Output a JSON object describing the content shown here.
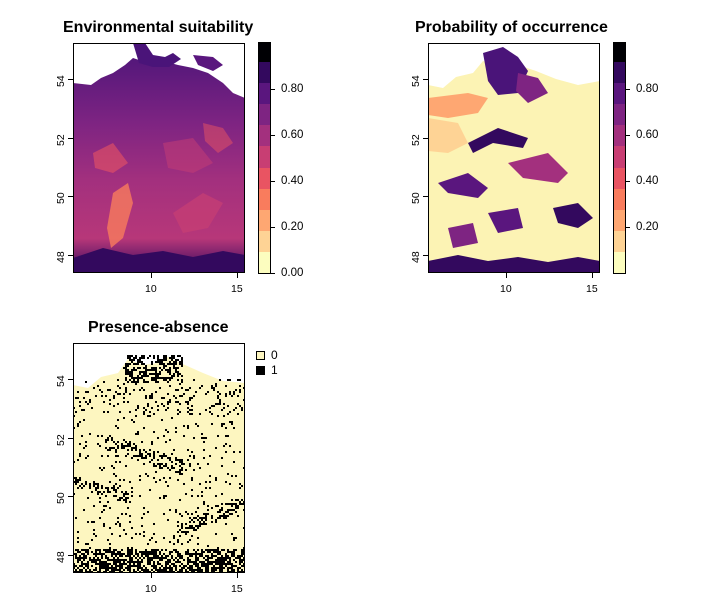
{
  "panels": {
    "suitability": {
      "title": "Environmental suitability",
      "x_ticks": [
        "10",
        "15"
      ],
      "y_ticks": [
        "48",
        "50",
        "52",
        "54"
      ],
      "colorbar_labels": [
        "0.00",
        "0.20",
        "0.40",
        "0.60",
        "0.80"
      ],
      "colorbar_colors": [
        "#fcfdbf",
        "#fed395",
        "#fea772",
        "#f97c5d",
        "#e95462",
        "#c83e73",
        "#a3307e",
        "#7e2482",
        "#5a167e",
        "#33095e",
        "#000004"
      ]
    },
    "probability": {
      "title": "Probability of occurrence",
      "x_ticks": [
        "10",
        "15"
      ],
      "y_ticks": [
        "48",
        "50",
        "52",
        "54"
      ],
      "colorbar_labels": [
        "0.20",
        "0.40",
        "0.60",
        "0.80"
      ],
      "colorbar_colors": [
        "#fcfdbf",
        "#fed395",
        "#fea772",
        "#f97c5d",
        "#e95462",
        "#c83e73",
        "#a3307e",
        "#7e2482",
        "#5a167e",
        "#33095e",
        "#000004"
      ]
    },
    "presence": {
      "title": "Presence-absence",
      "x_ticks": [
        "10",
        "15"
      ],
      "y_ticks": [
        "48",
        "50",
        "52",
        "54"
      ],
      "legend": [
        {
          "label": "0",
          "color": "#fdf6c0"
        },
        {
          "label": "1",
          "color": "#000000"
        }
      ]
    }
  }
}
